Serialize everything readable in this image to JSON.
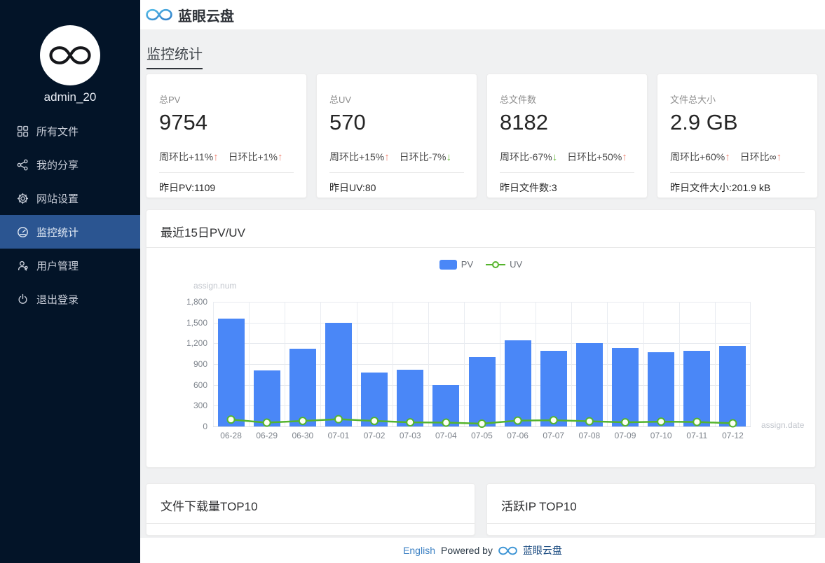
{
  "sidebar": {
    "username": "admin_20",
    "items": [
      {
        "label": "所有文件",
        "icon": "grid-icon",
        "active": false
      },
      {
        "label": "我的分享",
        "icon": "share-icon",
        "active": false
      },
      {
        "label": "网站设置",
        "icon": "gear-icon",
        "active": false
      },
      {
        "label": "监控统计",
        "icon": "dashboard-icon",
        "active": true
      },
      {
        "label": "用户管理",
        "icon": "users-icon",
        "active": false
      },
      {
        "label": "退出登录",
        "icon": "power-icon",
        "active": false
      }
    ]
  },
  "header": {
    "brand": "蓝眼云盘"
  },
  "page": {
    "title": "监控统计"
  },
  "stat_cards": [
    {
      "title": "总PV",
      "value": "9754",
      "week_text": "周环比+11%",
      "week_dir": "up",
      "day_text": "日环比+1%",
      "day_dir": "up",
      "yesterday": "昨日PV:1109"
    },
    {
      "title": "总UV",
      "value": "570",
      "week_text": "周环比+15%",
      "week_dir": "up",
      "day_text": "日环比-7%",
      "day_dir": "down",
      "yesterday": "昨日UV:80"
    },
    {
      "title": "总文件数",
      "value": "8182",
      "week_text": "周环比-67%",
      "week_dir": "down",
      "day_text": "日环比+50%",
      "day_dir": "up",
      "yesterday": "昨日文件数:3"
    },
    {
      "title": "文件总大小",
      "value": "2.9 GB",
      "week_text": "周环比+60%",
      "week_dir": "up",
      "day_text": "日环比∞",
      "day_dir": "up",
      "yesterday": "昨日文件大小:201.9 kB"
    }
  ],
  "chart_card": {
    "title": "最近15日PV/UV"
  },
  "chart_data": {
    "type": "bar",
    "categories": [
      "06-28",
      "06-29",
      "06-30",
      "07-01",
      "07-02",
      "07-03",
      "07-04",
      "07-05",
      "07-06",
      "07-07",
      "07-08",
      "07-09",
      "07-10",
      "07-11",
      "07-12"
    ],
    "series": [
      {
        "name": "PV",
        "type": "bar",
        "color": "#4a87f7",
        "values": [
          1560,
          805,
          1120,
          1500,
          775,
          815,
          600,
          1000,
          1240,
          1090,
          1205,
          1130,
          1075,
          1090,
          1160
        ]
      },
      {
        "name": "UV",
        "type": "line",
        "color": "#55b42d",
        "values": [
          100,
          55,
          80,
          105,
          80,
          60,
          55,
          40,
          85,
          90,
          75,
          60,
          70,
          65,
          45
        ]
      }
    ],
    "title": "最近15日PV/UV",
    "xlabel": "assign.date",
    "ylabel": "assign.num",
    "ylim": [
      0,
      1800
    ],
    "ytick_labels": [
      "1,800",
      "1,500",
      "1,200",
      "900",
      "600",
      "300",
      "0"
    ],
    "grid": true,
    "legend_position": "top-center"
  },
  "bottom_cards": [
    {
      "title": "文件下载量TOP10"
    },
    {
      "title": "活跃IP TOP10"
    }
  ],
  "footer": {
    "language": "English",
    "powered_by": "Powered by",
    "brand": "蓝眼云盘"
  },
  "colors": {
    "sidebar_bg": "#031428",
    "active_item_bg": "#2b5591",
    "bar": "#4a87f7",
    "line": "#55b42d",
    "trend_up": "#ef8270",
    "trend_down": "#5eb531"
  },
  "glyphs": {
    "up_arrow": "↑",
    "down_arrow": "↓"
  }
}
